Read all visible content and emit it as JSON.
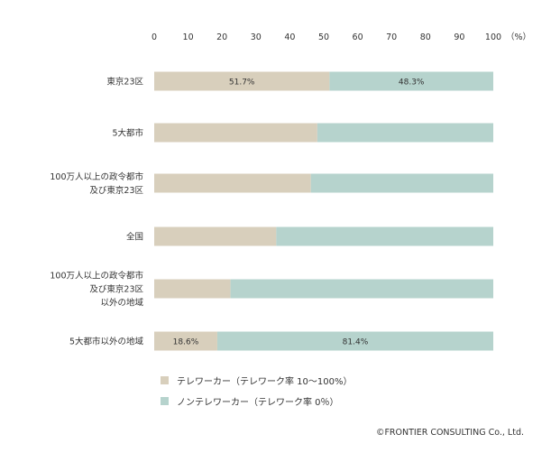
{
  "chart_data": {
    "type": "bar",
    "orientation": "horizontal",
    "stacked": true,
    "categories": [
      [
        "東京23区"
      ],
      [
        "5大都市"
      ],
      [
        "100万人以上の政令都市",
        "及び東京23区"
      ],
      [
        "全国"
      ],
      [
        "100万人以上の政令都市",
        "及び東京23区",
        "以外の地域"
      ],
      [
        "5大都市以外の地域"
      ]
    ],
    "series": [
      {
        "name": "テレワーカー（テレワーク率 10〜100%）",
        "color": "#d8cfbc",
        "values": [
          51.7,
          48.1,
          46.2,
          36.0,
          22.5,
          18.6
        ],
        "labels": [
          "51.7%",
          "",
          "",
          "",
          "",
          "18.6%"
        ]
      },
      {
        "name": "ノンテレワーカー（テレワーク率 0％）",
        "color": "#b6d3cd",
        "values": [
          48.3,
          51.9,
          53.8,
          64.0,
          77.5,
          81.4
        ],
        "labels": [
          "48.3%",
          "",
          "",
          "",
          "",
          "81.4%"
        ]
      }
    ],
    "xlim": [
      0,
      100
    ],
    "xticks": [
      "0",
      "10",
      "20",
      "30",
      "40",
      "50",
      "60",
      "70",
      "80",
      "90",
      "100"
    ],
    "xunit": "（%）",
    "legend_position": "bottom"
  },
  "credit": "©FRONTIER CONSULTING Co., Ltd."
}
